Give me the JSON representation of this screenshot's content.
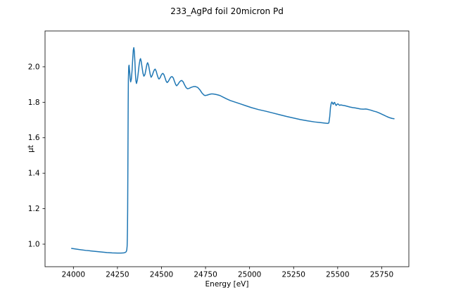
{
  "figure": {
    "background": "#ffffff",
    "title": "233_AgPd foil 20micron Pd"
  },
  "chart_data": {
    "type": "line",
    "title": "233_AgPd foil 20micron Pd",
    "xlabel": "Energy [eV]",
    "ylabel": "μt",
    "xlim": [
      23839,
      25904
    ],
    "ylim": [
      0.873,
      2.202
    ],
    "xticks": [
      24000,
      24250,
      24500,
      24750,
      25000,
      25250,
      25500,
      25750
    ],
    "yticks": [
      1.0,
      1.2,
      1.4,
      1.6,
      1.8,
      2.0
    ],
    "grid": false,
    "legend_position": "none",
    "line_color": "#1f77b4",
    "line_width": 1.5,
    "spine_color": "#000000",
    "series": [
      {
        "name": "233_AgPd foil 20micron Pd",
        "x": [
          23990,
          24030,
          24070,
          24110,
          24150,
          24190,
          24220,
          24250,
          24270,
          24285,
          24294,
          24300,
          24303,
          24305,
          24306,
          24307,
          24308,
          24309,
          24310,
          24311,
          24312,
          24314,
          24316,
          24319,
          24322,
          24325,
          24329,
          24333,
          24337,
          24340,
          24343,
          24346,
          24349,
          24352,
          24355,
          24358,
          24363,
          24368,
          24373,
          24378,
          24381,
          24385,
          24390,
          24395,
          24400,
          24406,
          24412,
          24417,
          24421,
          24426,
          24431,
          24436,
          24441,
          24447,
          24453,
          24459,
          24464,
          24470,
          24476,
          24482,
          24486,
          24492,
          24498,
          24504,
          24508,
          24514,
          24520,
          24526,
          24532,
          24539,
          24547,
          24554,
          24560,
          24567,
          24574,
          24581,
          24586,
          24593,
          24601,
          24609,
          24615,
          24623,
          24631,
          24640,
          24648,
          24658,
          24668,
          24680,
          24692,
          24705,
          24718,
          24730,
          24742,
          24748,
          24758,
          24770,
          24782,
          24792,
          24805,
          24818,
          24832,
          24850,
          24870,
          24890,
          24920,
          24950,
          24980,
          25010,
          25050,
          25090,
          25130,
          25170,
          25210,
          25250,
          25290,
          25330,
          25370,
          25400,
          25425,
          25445,
          25450,
          25455,
          25459,
          25463,
          25467,
          25471,
          25475,
          25479,
          25483,
          25488,
          25492,
          25497,
          25502,
          25510,
          25518,
          25528,
          25540,
          25555,
          25570,
          25585,
          25600,
          25615,
          25630,
          25645,
          25660,
          25675,
          25690,
          25705,
          25720,
          25735,
          25750,
          25765,
          25780,
          25795,
          25808,
          25820
        ],
        "y": [
          0.976,
          0.97,
          0.965,
          0.961,
          0.957,
          0.953,
          0.951,
          0.95,
          0.95,
          0.951,
          0.953,
          0.958,
          0.968,
          0.99,
          1.03,
          1.09,
          1.2,
          1.39,
          1.6,
          1.8,
          1.93,
          2.0,
          2.009,
          1.975,
          1.935,
          1.915,
          1.931,
          1.98,
          2.05,
          2.094,
          2.108,
          2.085,
          2.03,
          1.96,
          1.92,
          1.906,
          1.925,
          1.966,
          2.01,
          2.04,
          2.046,
          2.03,
          1.995,
          1.963,
          1.947,
          1.956,
          1.986,
          2.013,
          2.023,
          2.012,
          1.985,
          1.957,
          1.941,
          1.95,
          1.968,
          1.982,
          1.987,
          1.975,
          1.953,
          1.936,
          1.931,
          1.938,
          1.952,
          1.961,
          1.963,
          1.955,
          1.938,
          1.92,
          1.911,
          1.918,
          1.933,
          1.943,
          1.945,
          1.937,
          1.917,
          1.899,
          1.893,
          1.9,
          1.913,
          1.921,
          1.923,
          1.915,
          1.898,
          1.882,
          1.876,
          1.879,
          1.884,
          1.888,
          1.889,
          1.884,
          1.87,
          1.852,
          1.84,
          1.838,
          1.84,
          1.844,
          1.847,
          1.847,
          1.845,
          1.842,
          1.838,
          1.829,
          1.819,
          1.81,
          1.8,
          1.79,
          1.78,
          1.77,
          1.759,
          1.75,
          1.74,
          1.73,
          1.72,
          1.711,
          1.702,
          1.695,
          1.689,
          1.686,
          1.683,
          1.681,
          1.684,
          1.72,
          1.77,
          1.793,
          1.801,
          1.795,
          1.788,
          1.797,
          1.799,
          1.786,
          1.782,
          1.789,
          1.791,
          1.783,
          1.785,
          1.783,
          1.781,
          1.777,
          1.773,
          1.77,
          1.768,
          1.765,
          1.762,
          1.761,
          1.762,
          1.759,
          1.755,
          1.75,
          1.746,
          1.74,
          1.733,
          1.726,
          1.719,
          1.713,
          1.709,
          1.707
        ]
      }
    ]
  }
}
